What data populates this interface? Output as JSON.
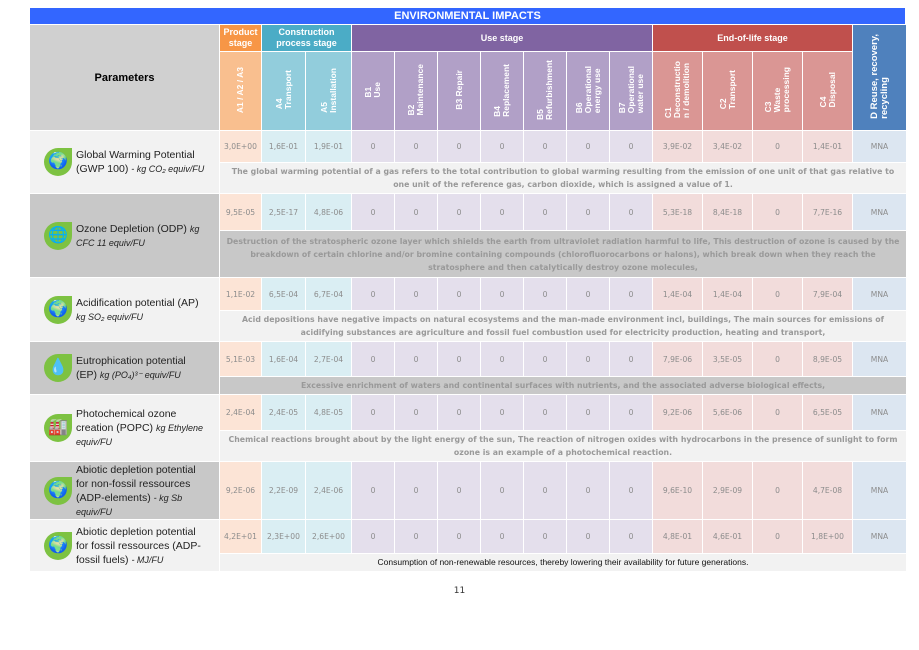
{
  "title": "ENVIRONMENTAL IMPACTS",
  "header": {
    "parameters": "Parameters",
    "groups": [
      {
        "label": "Product stage",
        "color": "#f79646"
      },
      {
        "label": "Construction process stage",
        "color": "#4bacc6"
      },
      {
        "label": "Use stage",
        "color": "#8064a2"
      },
      {
        "label": "End-of-life stage",
        "color": "#c0504d"
      }
    ],
    "D": "D Reuse, recovery,\nrecycling",
    "columns": [
      "A1 / A2 / A3",
      "A4\nTransport",
      "A5\nInstallation",
      "B1\nUse",
      "B2\nMaintenance",
      "B3 Repair",
      "B4\nReplacement",
      "B5\nRefurbishment",
      "B6\nOperational\nenergy use",
      "B7\nOperational\nwater use",
      "C1\nDeconstructio\nn / demolition",
      "C2\nTransport",
      "C3\nWaste\nprocessing",
      "C4\nDisposal"
    ]
  },
  "rows": [
    {
      "name": "Global Warming Potential (GWP 100)",
      "unit": "- kg CO₂ equiv/FU",
      "icon": "co2-globe-icon",
      "shade": "light",
      "values": [
        "3,0E+00",
        "1,6E-01",
        "1,9E-01",
        "0",
        "0",
        "0",
        "0",
        "0",
        "0",
        "0",
        "3,9E-02",
        "3,4E-02",
        "0",
        "1,4E-01",
        "MNA"
      ],
      "description": "The global warming potential of a gas refers to the total contribution to global warming resulting from the emission of one unit of that gas relative to one unit of the reference gas, carbon dioxide, which is assigned a value of 1."
    },
    {
      "name": "Ozone Depletion (ODP)",
      "unit": "kg CFC 11 equiv/FU",
      "icon": "ozone-globe-icon",
      "shade": "dark",
      "values": [
        "9,5E-05",
        "2,5E-17",
        "4,8E-06",
        "0",
        "0",
        "0",
        "0",
        "0",
        "0",
        "0",
        "5,3E-18",
        "8,4E-18",
        "0",
        "7,7E-16",
        "MNA"
      ],
      "description": "Destruction of the stratospheric ozone layer which shields the earth from ultraviolet radiation harmful to life, This destruction of ozone is caused by the breakdown of certain chlorine and/or bromine containing compounds (chlorofluorocarbons or halons), which break down when they reach the stratosphere and then catalytically destroy ozone molecules,"
    },
    {
      "name": "Acidification potential (AP)",
      "unit": "kg SO₂ equiv/FU",
      "icon": "acid-rain-globe-icon",
      "shade": "light",
      "values": [
        "1,1E-02",
        "6,5E-04",
        "6,7E-04",
        "0",
        "0",
        "0",
        "0",
        "0",
        "0",
        "0",
        "1,4E-04",
        "1,4E-04",
        "0",
        "7,9E-04",
        "MNA"
      ],
      "description": "Acid depositions have negative impacts on natural ecosystems and the man-made environment incl, buildings, The main sources for emissions of acidifying substances are agriculture and fossil fuel combustion used for electricity production, heating and transport,"
    },
    {
      "name": "Eutrophication potential (EP)",
      "unit": "kg (PO₄)³⁻ equiv/FU",
      "icon": "water-drop-icon",
      "shade": "dark",
      "values": [
        "5,1E-03",
        "1,6E-04",
        "2,7E-04",
        "0",
        "0",
        "0",
        "0",
        "0",
        "0",
        "0",
        "7,9E-06",
        "3,5E-05",
        "0",
        "8,9E-05",
        "MNA"
      ],
      "description": "Excessive enrichment of waters and continental surfaces with nutrients, and the associated adverse biological effects,"
    },
    {
      "name": "Photochemical ozone creation (POPC)",
      "unit": "kg Ethylene equiv/FU",
      "icon": "factory-smoke-icon",
      "shade": "light",
      "values": [
        "2,4E-04",
        "2,4E-05",
        "4,8E-05",
        "0",
        "0",
        "0",
        "0",
        "0",
        "0",
        "0",
        "9,2E-06",
        "5,6E-06",
        "0",
        "6,5E-05",
        "MNA"
      ],
      "description": "Chemical reactions brought about by the light energy of the sun, The reaction of nitrogen oxides with hydrocarbons in the presence of sunlight to form ozone is an example of a photochemical reaction."
    },
    {
      "name": "Abiotic depletion potential for non-fossil ressources (ADP-elements)",
      "unit": "- kg Sb equiv/FU",
      "icon": "mineral-globe-icon",
      "shade": "dark",
      "values": [
        "9,2E-06",
        "2,2E-09",
        "2,4E-06",
        "0",
        "0",
        "0",
        "0",
        "0",
        "0",
        "0",
        "9,6E-10",
        "2,9E-09",
        "0",
        "4,7E-08",
        "MNA"
      ],
      "description": ""
    },
    {
      "name": "Abiotic depletion potential for fossil ressources (ADP-fossil fuels)",
      "unit": "- MJ/FU",
      "icon": "fossil-globe-icon",
      "shade": "light",
      "values": [
        "4,2E+01",
        "2,3E+00",
        "2,6E+00",
        "0",
        "0",
        "0",
        "0",
        "0",
        "0",
        "0",
        "4,8E-01",
        "4,6E-01",
        "0",
        "1,8E+00",
        "MNA"
      ],
      "description": "Consumption of non-renewable resources, thereby lowering their availability for future generations.",
      "plain": true
    }
  ],
  "page_number": "11"
}
